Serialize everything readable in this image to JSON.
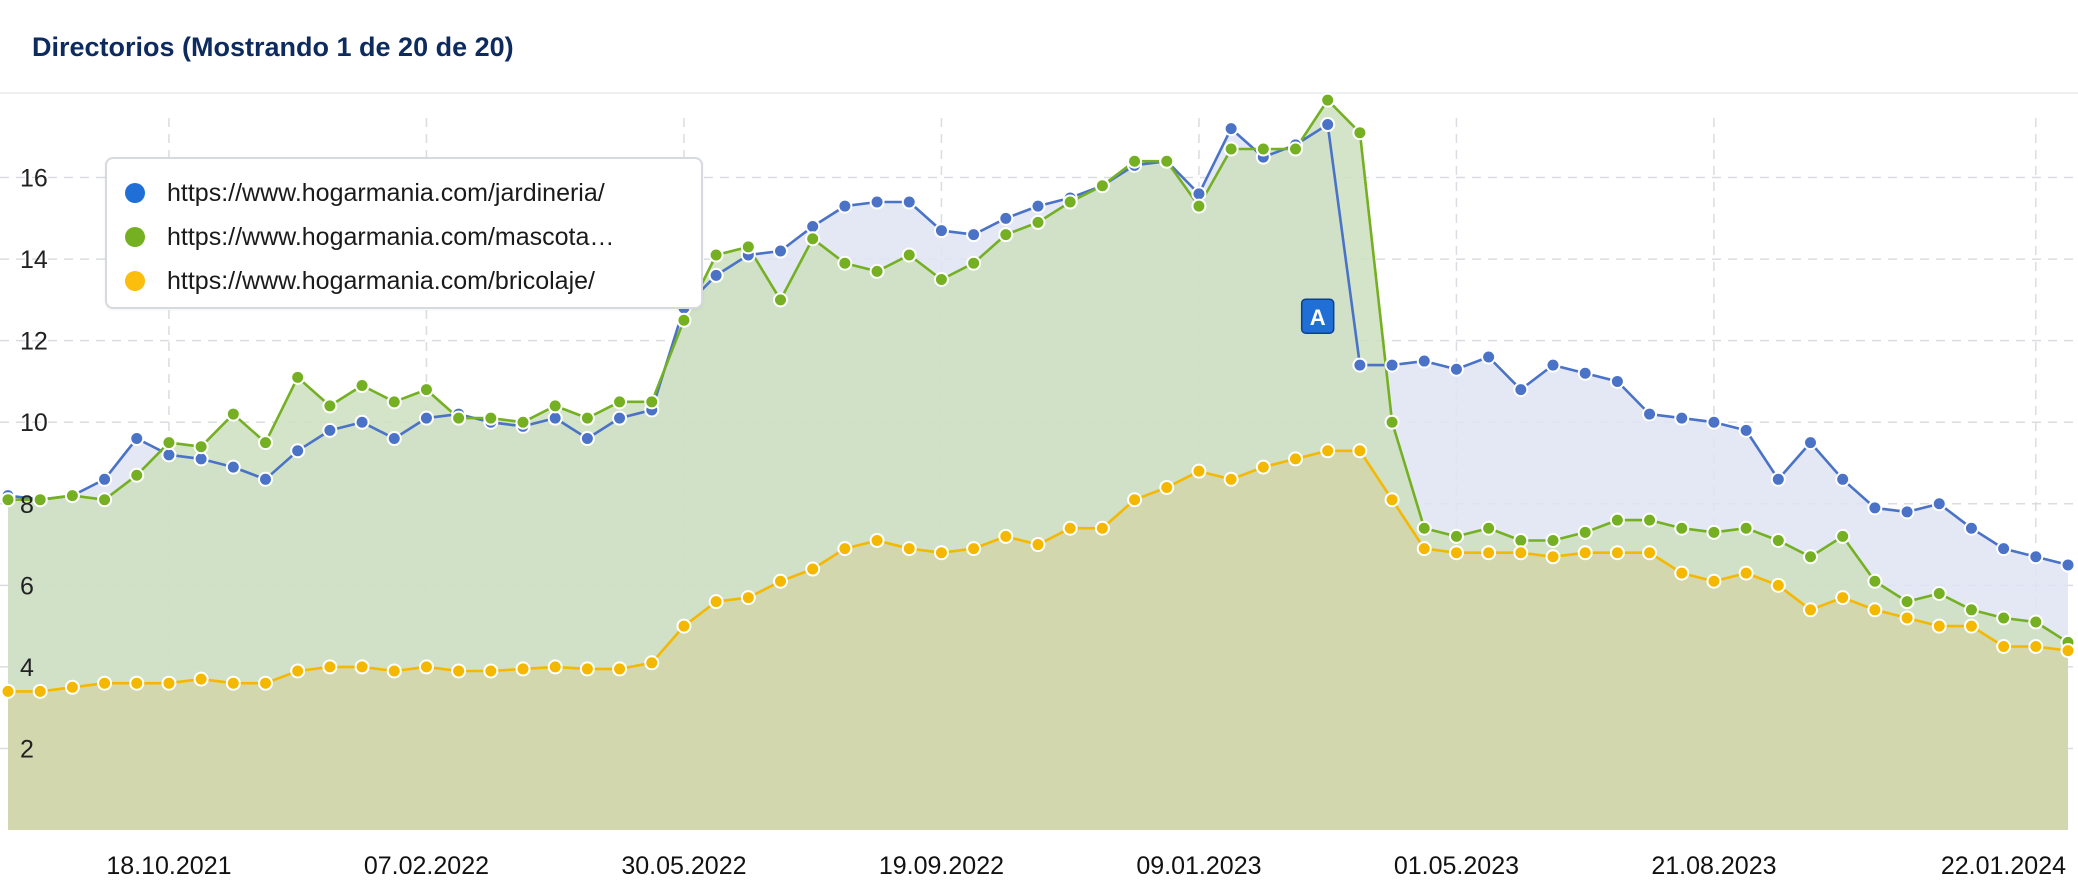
{
  "header": {
    "title": "Directorios (Mostrando 1 de 20 de 20)"
  },
  "legend": {
    "items": [
      {
        "label": "https://www.hogarmania.com/jardineria/",
        "color": "#1f6fd6"
      },
      {
        "label": "https://www.hogarmania.com/mascota…",
        "color": "#74b022"
      },
      {
        "label": "https://www.hogarmania.com/bricolaje/",
        "color": "#fbbe0c"
      }
    ]
  },
  "annotation": {
    "label": "A",
    "date_index": 41,
    "color": "#1f6fd6"
  },
  "chart_data": {
    "type": "area",
    "title": "Directorios (Mostrando 1 de 20 de 20)",
    "xlabel": "",
    "ylabel": "",
    "ylim": [
      0,
      18
    ],
    "y_ticks": [
      2,
      4,
      6,
      8,
      10,
      12,
      14,
      16
    ],
    "x_tick_labels": [
      "18.10.2021",
      "07.02.2022",
      "30.05.2022",
      "19.09.2022",
      "09.01.2023",
      "01.05.2023",
      "21.08.2023",
      "22.01.2024"
    ],
    "x_tick_indices": [
      5,
      13,
      21,
      29,
      37,
      45,
      53,
      63
    ],
    "grid": true,
    "legend_position": "top-left",
    "series": [
      {
        "name": "https://www.hogarmania.com/jardineria/",
        "color": "#4a72c7",
        "fill": "#dfe4f3",
        "values": [
          8.2,
          8.1,
          8.2,
          8.6,
          9.6,
          9.2,
          9.1,
          8.9,
          8.6,
          9.3,
          9.8,
          10.0,
          9.6,
          10.1,
          10.2,
          10.0,
          9.9,
          10.1,
          9.6,
          10.1,
          10.3,
          12.8,
          13.6,
          14.1,
          14.2,
          14.8,
          15.3,
          15.4,
          15.4,
          14.7,
          14.6,
          15.0,
          15.3,
          15.5,
          15.8,
          16.3,
          16.4,
          15.6,
          17.2,
          16.5,
          16.8,
          17.3,
          11.4,
          11.4,
          11.5,
          11.3,
          11.6,
          10.8,
          11.4,
          11.2,
          11.0,
          10.2,
          10.1,
          10.0,
          9.8,
          8.6,
          9.5,
          8.6,
          7.9,
          7.8,
          8.0,
          7.4,
          6.9,
          6.7,
          6.5
        ]
      },
      {
        "name": "https://www.hogarmania.com/mascota…",
        "color": "#74b022",
        "fill": "#ccdfc0",
        "values": [
          8.1,
          8.1,
          8.2,
          8.1,
          8.7,
          9.5,
          9.4,
          10.2,
          9.5,
          11.1,
          10.4,
          10.9,
          10.5,
          10.8,
          10.1,
          10.1,
          10.0,
          10.4,
          10.1,
          10.5,
          10.5,
          12.5,
          14.1,
          14.3,
          13.0,
          14.5,
          13.9,
          13.7,
          14.1,
          13.5,
          13.9,
          14.6,
          14.9,
          15.4,
          15.8,
          16.4,
          16.4,
          15.3,
          16.7,
          16.7,
          16.7,
          17.9,
          17.1,
          10.0,
          7.4,
          7.2,
          7.4,
          7.1,
          7.1,
          7.3,
          7.6,
          7.6,
          7.4,
          7.3,
          7.4,
          7.1,
          6.7,
          7.2,
          6.1,
          5.6,
          5.8,
          5.4,
          5.2,
          5.1,
          4.6
        ]
      },
      {
        "name": "https://www.hogarmania.com/bricolaje/",
        "color": "#f5b800",
        "fill": "#d2d5a9",
        "values": [
          3.4,
          3.4,
          3.5,
          3.6,
          3.6,
          3.6,
          3.7,
          3.6,
          3.6,
          3.9,
          4.0,
          4.0,
          3.9,
          4.0,
          3.9,
          3.9,
          3.95,
          4.0,
          3.95,
          3.95,
          4.1,
          5.0,
          5.6,
          5.7,
          6.1,
          6.4,
          6.9,
          7.1,
          6.9,
          6.8,
          6.9,
          7.2,
          7.0,
          7.4,
          7.4,
          8.1,
          8.4,
          8.8,
          8.6,
          8.9,
          9.1,
          9.3,
          9.3,
          8.1,
          6.9,
          6.8,
          6.8,
          6.8,
          6.7,
          6.8,
          6.8,
          6.8,
          6.3,
          6.1,
          6.3,
          6.0,
          5.4,
          5.7,
          5.4,
          5.2,
          5.0,
          5.0,
          4.5,
          4.5,
          4.4
        ]
      }
    ]
  }
}
